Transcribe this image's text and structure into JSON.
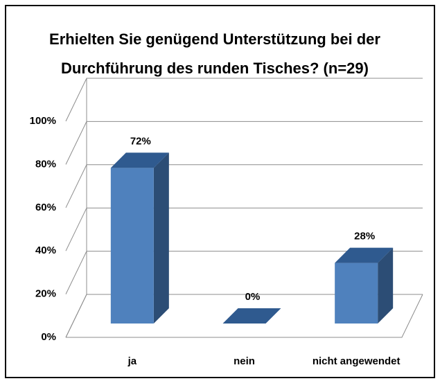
{
  "chart_data": {
    "type": "bar3d",
    "title": [
      "Erhielten Sie genügend Unterstützung bei der",
      "Durchführung des runden Tisches?  (n=29)"
    ],
    "categories": [
      "ja",
      "nein",
      "nicht angewendet"
    ],
    "values": [
      72,
      0,
      28
    ],
    "value_labels": [
      "72%",
      "0%",
      "28%"
    ],
    "color": "#4f81bd",
    "ylim": [
      0,
      100
    ],
    "yticks": [
      {
        "value": 0,
        "label": "0%"
      },
      {
        "value": 20,
        "label": "20%"
      },
      {
        "value": 40,
        "label": "40%"
      },
      {
        "value": 60,
        "label": "60%"
      },
      {
        "value": 80,
        "label": "80%"
      },
      {
        "value": 100,
        "label": "100%"
      }
    ],
    "grid": true
  }
}
